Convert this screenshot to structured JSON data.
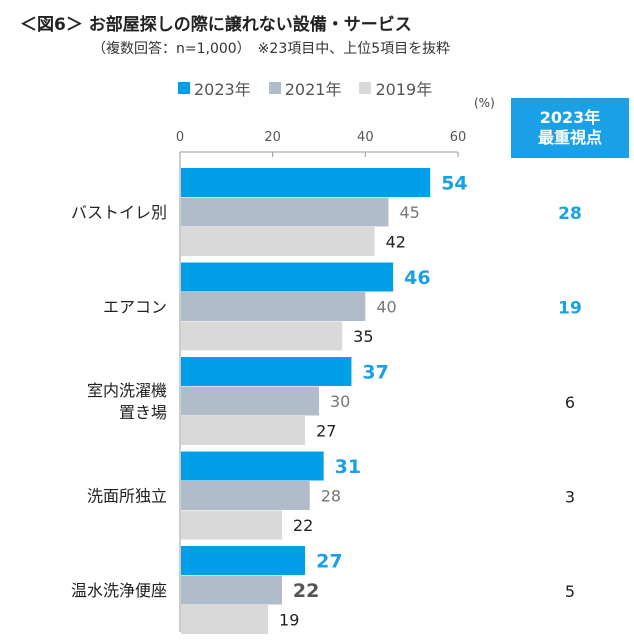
{
  "heading": {
    "title": "＜図6＞ お部屋探しの際に譲れない設備・サービス",
    "subtitle": "（複数回答：n=1,000）　※23項目中、上位5項目を抜粋"
  },
  "side_panel": {
    "header_line1": "2023年",
    "header_line2": "最重視点",
    "values": [
      "28",
      "19",
      "6",
      "3",
      "5"
    ],
    "highlight_color": "#1aa0e6",
    "normal_color": "#222222"
  },
  "chart_data": {
    "type": "bar",
    "orientation": "horizontal",
    "unit": "(%)",
    "xlim": [
      0,
      60
    ],
    "ticks": [
      0,
      20,
      40,
      60
    ],
    "categories": [
      [
        "バストイレ別"
      ],
      [
        "エアコン"
      ],
      [
        "室内洗濯機",
        "置き場"
      ],
      [
        "洗面所独立"
      ],
      [
        "温水洗浄便座"
      ]
    ],
    "series": [
      {
        "name": "2023年",
        "color": "#009fe8",
        "label_color": "#1aa0e6",
        "bold": true,
        "values": [
          54,
          46,
          37,
          31,
          27
        ]
      },
      {
        "name": "2021年",
        "color": "#b0bcc9",
        "label_color": "#777777",
        "bold": false,
        "values": [
          45,
          40,
          30,
          28,
          22
        ]
      },
      {
        "name": "2019年",
        "color": "#d9d9d9",
        "label_color": "#222222",
        "bold": false,
        "values": [
          42,
          35,
          27,
          22,
          19
        ]
      }
    ],
    "emphasized_labels": [
      [
        4,
        1
      ]
    ]
  }
}
